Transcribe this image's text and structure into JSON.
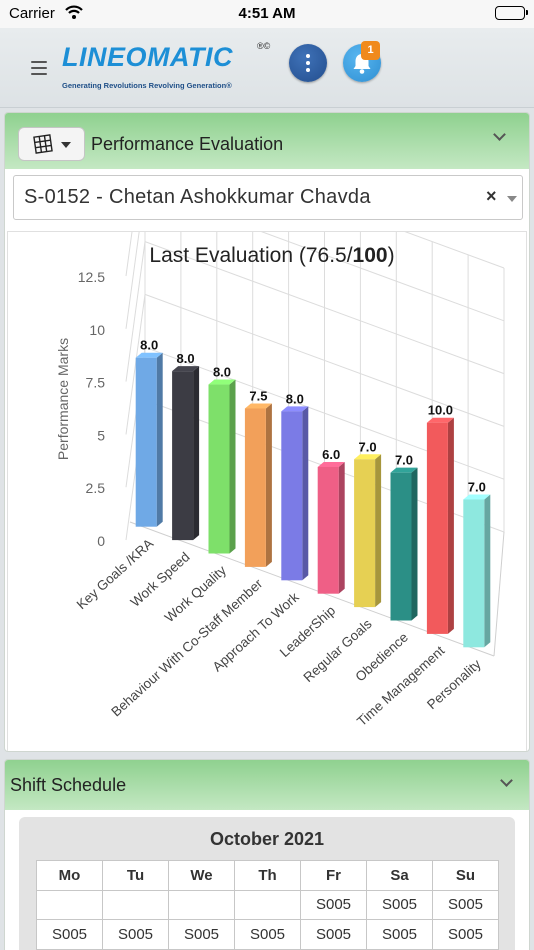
{
  "status_bar": {
    "carrier": "Carrier",
    "time": "4:51 AM"
  },
  "header": {
    "logo_text": "LINEOMATIC",
    "logo_reg": "®©",
    "logo_tagline": "Generating Revolutions Revolving Generation®",
    "notification_count": "1",
    "icons": [
      "menu-icon",
      "more-vertical-icon",
      "bell-icon"
    ],
    "colors": {
      "brand": "#1d8fd6",
      "more_button": "#2a5a9c",
      "bell_button": "#3d9fe0",
      "badge": "#f08a1c"
    }
  },
  "performance": {
    "title": "Performance Evaluation",
    "employee_select": {
      "selected": "S-0152 - Chetan Ashokkumar Chavda"
    },
    "header_gradient": [
      "#8fd18f",
      "#c4e8c3"
    ]
  },
  "chart_data": {
    "type": "bar",
    "title_prefix": "Last Evaluation (76.5/",
    "title_bold": "100",
    "title_suffix": ")",
    "ylabel": "Performance Marks",
    "xlabel": "",
    "ylim": [
      0,
      12.5
    ],
    "yticks": [
      "0",
      "2.5",
      "5",
      "7.5",
      "10",
      "12.5"
    ],
    "grid": true,
    "style": "3d",
    "categories": [
      "Key Goals /KRA",
      "Work Speed",
      "Work Quality",
      "Behaviour With Co-Staff Member",
      "Approach To Work",
      "LeaderShip",
      "Regular Goals",
      "Obedience",
      "Time Management",
      "Personality"
    ],
    "values": [
      8.0,
      8.0,
      8.0,
      7.5,
      8.0,
      6.0,
      7.0,
      7.0,
      10.0,
      7.0
    ],
    "value_labels": [
      "8.0",
      "8.0",
      "8.0",
      "7.5",
      "8.0",
      "6.0",
      "7.0",
      "7.0",
      "10.0",
      "7.0"
    ],
    "colors": [
      "#6fa9e6",
      "#3c3c44",
      "#7ee06a",
      "#f2a05a",
      "#7b7be6",
      "#ef5f86",
      "#e6d053",
      "#2b8f86",
      "#f25a5c",
      "#8ee8df"
    ]
  },
  "shift": {
    "title": "Shift Schedule",
    "month": "October 2021",
    "weekdays": [
      "Mo",
      "Tu",
      "We",
      "Th",
      "Fr",
      "Sa",
      "Su"
    ],
    "rows": [
      [
        "",
        "",
        "",
        "",
        "S005",
        "S005",
        "S005"
      ],
      [
        "S005",
        "S005",
        "S005",
        "S005",
        "S005",
        "S005",
        "S005"
      ]
    ]
  }
}
